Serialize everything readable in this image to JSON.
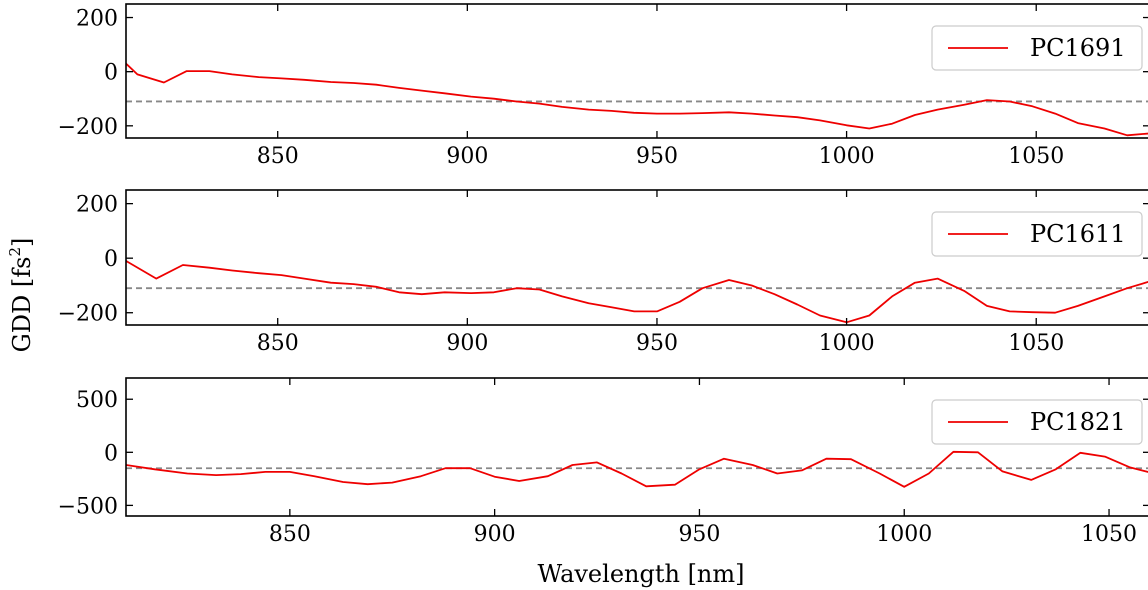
{
  "figure": {
    "xlabel": "Wavelength [nm]",
    "ylabel": "GDD [fs",
    "ylabel_sup": "2",
    "ylabel_end": "]"
  },
  "chart_data": [
    {
      "type": "line",
      "series": [
        {
          "name": "PC1691",
          "color": "#ee0000",
          "x": [
            810,
            813,
            820,
            826,
            832,
            838,
            845,
            851,
            857,
            864,
            870,
            876,
            882,
            888,
            894,
            901,
            907,
            913,
            919,
            925,
            932,
            938,
            944,
            950,
            956,
            962,
            969,
            975,
            981,
            987,
            993,
            1000,
            1006,
            1012,
            1018,
            1024,
            1031,
            1037,
            1043,
            1049,
            1055,
            1061,
            1068,
            1074,
            1080
          ],
          "y": [
            30,
            -10,
            -40,
            2,
            2,
            -10,
            -20,
            -25,
            -30,
            -38,
            -42,
            -48,
            -60,
            -70,
            -80,
            -92,
            -100,
            -110,
            -118,
            -130,
            -140,
            -145,
            -152,
            -155,
            -155,
            -153,
            -150,
            -155,
            -162,
            -168,
            -180,
            -198,
            -210,
            -192,
            -160,
            -140,
            -122,
            -105,
            -110,
            -128,
            -155,
            -190,
            -210,
            -235,
            -228
          ]
        }
      ],
      "reference_line": -110,
      "xlim": [
        810,
        1080
      ],
      "ylim": [
        -245,
        250
      ],
      "xticks": [
        850,
        900,
        950,
        1000,
        1050
      ],
      "yticks": [
        200,
        0,
        -200
      ],
      "legend": "top-right"
    },
    {
      "type": "line",
      "series": [
        {
          "name": "PC1611",
          "color": "#ee0000",
          "x": [
            810,
            818,
            825,
            832,
            838,
            845,
            851,
            857,
            864,
            870,
            876,
            882,
            888,
            894,
            901,
            907,
            913,
            919,
            925,
            932,
            938,
            944,
            950,
            956,
            962,
            969,
            975,
            981,
            987,
            993,
            1000,
            1006,
            1012,
            1018,
            1024,
            1031,
            1037,
            1043,
            1049,
            1055,
            1061,
            1068,
            1074,
            1080
          ],
          "y": [
            -10,
            -75,
            -25,
            -35,
            -45,
            -55,
            -62,
            -75,
            -90,
            -95,
            -105,
            -125,
            -132,
            -125,
            -128,
            -125,
            -110,
            -115,
            -140,
            -165,
            -180,
            -195,
            -195,
            -160,
            -110,
            -80,
            -100,
            -132,
            -170,
            -210,
            -235,
            -210,
            -140,
            -90,
            -75,
            -120,
            -175,
            -195,
            -198,
            -200,
            -175,
            -140,
            -110,
            -85
          ]
        }
      ],
      "reference_line": -110,
      "xlim": [
        810,
        1080
      ],
      "ylim": [
        -245,
        250
      ],
      "xticks": [
        850,
        900,
        950,
        1000,
        1050
      ],
      "yticks": [
        200,
        0,
        -200
      ],
      "legend": "top-right"
    },
    {
      "type": "line",
      "series": [
        {
          "name": "PC1821",
          "color": "#ee0000",
          "x": [
            810,
            817,
            825,
            832,
            838,
            844,
            850,
            856,
            863,
            869,
            875,
            882,
            888,
            894,
            900,
            906,
            913,
            919,
            925,
            931,
            937,
            944,
            950,
            956,
            963,
            969,
            975,
            981,
            987,
            994,
            1000,
            1006,
            1012,
            1018,
            1024,
            1031,
            1037,
            1043,
            1049,
            1055,
            1060
          ],
          "y": [
            -120,
            -160,
            -200,
            -215,
            -205,
            -185,
            -185,
            -225,
            -280,
            -300,
            -285,
            -225,
            -150,
            -150,
            -230,
            -270,
            -225,
            -120,
            -95,
            -200,
            -320,
            -305,
            -160,
            -60,
            -120,
            -200,
            -170,
            -60,
            -65,
            -200,
            -325,
            -200,
            5,
            0,
            -180,
            -260,
            -160,
            -5,
            -40,
            -140,
            -190
          ]
        }
      ],
      "reference_line": -150,
      "xlim": [
        810,
        1060
      ],
      "ylim": [
        -600,
        700
      ],
      "xticks": [
        850,
        900,
        950,
        1000,
        1050
      ],
      "yticks": [
        500,
        0,
        -500
      ],
      "legend": "top-right"
    }
  ]
}
